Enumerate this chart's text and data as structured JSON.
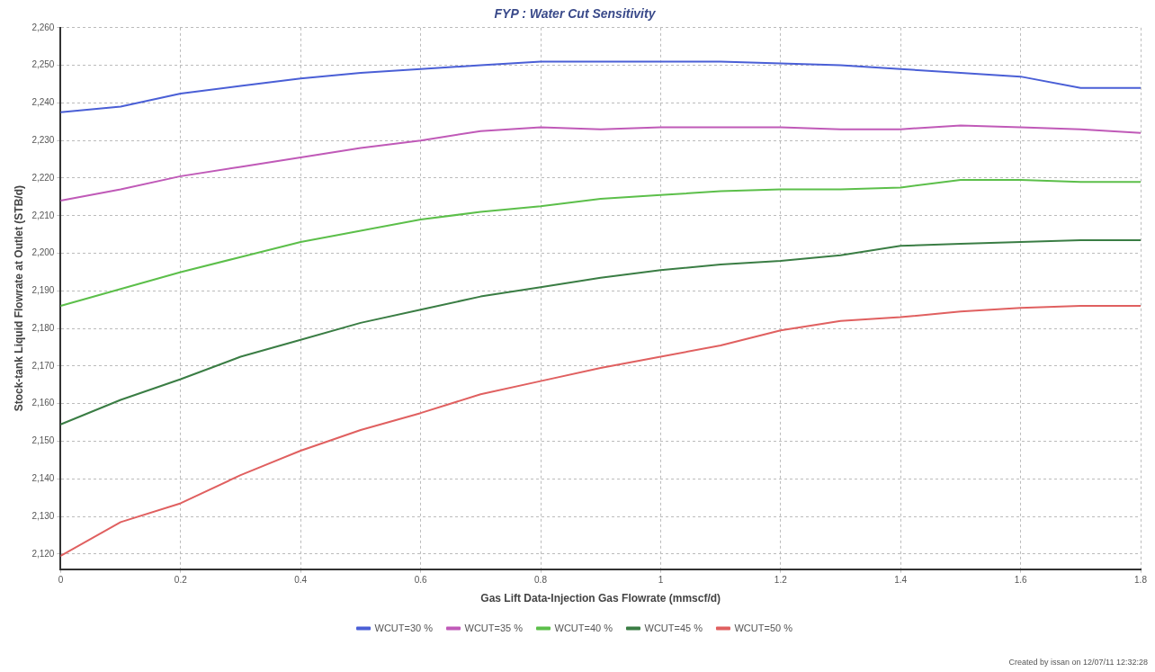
{
  "chart_data": {
    "type": "line",
    "title": "FYP : Water Cut Sensitivity",
    "xlabel": "Gas Lift Data-Injection Gas Flowrate (mmscf/d)",
    "ylabel": "Stock-tank Liquid Flowrate at Outlet (STB/d)",
    "x": [
      0,
      0.1,
      0.2,
      0.3,
      0.4,
      0.5,
      0.6,
      0.7,
      0.8,
      0.9,
      1,
      1.1,
      1.2,
      1.3,
      1.4,
      1.5,
      1.6,
      1.7,
      1.8
    ],
    "series": [
      {
        "name": "WCUT=30 %",
        "color": "#4a5fd6",
        "values": [
          2237.5,
          2239,
          2242.5,
          2244.5,
          2246.5,
          2248,
          2249,
          2250,
          2251,
          2251,
          2251,
          2251,
          2250.5,
          2250,
          2249,
          2248,
          2247,
          2244,
          2244
        ]
      },
      {
        "name": "WCUT=35 %",
        "color": "#c05ab8",
        "values": [
          2214,
          2217,
          2220.5,
          2223,
          2225.5,
          2228,
          2230,
          2232.5,
          2233.5,
          2233,
          2233.5,
          2233.5,
          2233.5,
          2233,
          2233,
          2234,
          2233.5,
          2233,
          2232
        ]
      },
      {
        "name": "WCUT=40 %",
        "color": "#5cbf4a",
        "values": [
          2186,
          2190.5,
          2195,
          2199,
          2203,
          2206,
          2209,
          2211,
          2212.5,
          2214.5,
          2215.5,
          2216.5,
          2217,
          2217,
          2217.5,
          2219.5,
          2219.5,
          2219,
          2219
        ]
      },
      {
        "name": "WCUT=45 %",
        "color": "#3a7d44",
        "values": [
          2154.5,
          2161,
          2166.5,
          2172.5,
          2177,
          2181.5,
          2185,
          2188.5,
          2191,
          2193.5,
          2195.5,
          2197,
          2198,
          2199.5,
          2202,
          2202.5,
          2203,
          2203.5,
          2203.5
        ]
      },
      {
        "name": "WCUT=50 %",
        "color": "#e06060",
        "values": [
          2119.5,
          2128.5,
          2133.5,
          2141,
          2147.5,
          2153,
          2157.5,
          2162.5,
          2166,
          2169.5,
          2172.5,
          2175.5,
          2179.5,
          2182,
          2183,
          2184.5,
          2185.5,
          2186,
          2186
        ]
      }
    ],
    "xlim": [
      0,
      1.8
    ],
    "xticks": [
      0,
      0.2,
      0.4,
      0.6,
      0.8,
      1,
      1.2,
      1.4,
      1.6,
      1.8
    ],
    "ylim": [
      2116,
      2260
    ],
    "yticks": [
      {
        "value": 2120,
        "label": "2,120"
      },
      {
        "value": 2130,
        "label": "2,130"
      },
      {
        "value": 2140,
        "label": "2,140"
      },
      {
        "value": 2150,
        "label": "2,150"
      },
      {
        "value": 2160,
        "label": "2,160"
      },
      {
        "value": 2170,
        "label": "2,170"
      },
      {
        "value": 2180,
        "label": "2,180"
      },
      {
        "value": 2190,
        "label": "2,190"
      },
      {
        "value": 2200,
        "label": "2,200"
      },
      {
        "value": 2210,
        "label": "2,210"
      },
      {
        "value": 2220,
        "label": "2,220"
      },
      {
        "value": 2230,
        "label": "2,230"
      },
      {
        "value": 2240,
        "label": "2,240"
      },
      {
        "value": 2250,
        "label": "2,250"
      },
      {
        "value": 2260,
        "label": "2,260"
      }
    ],
    "grid": true,
    "legend": "bottom",
    "marker": "none",
    "line_style": "solid",
    "annotations": [
      "Created by issan on 12/07/11 12:32:28"
    ]
  }
}
